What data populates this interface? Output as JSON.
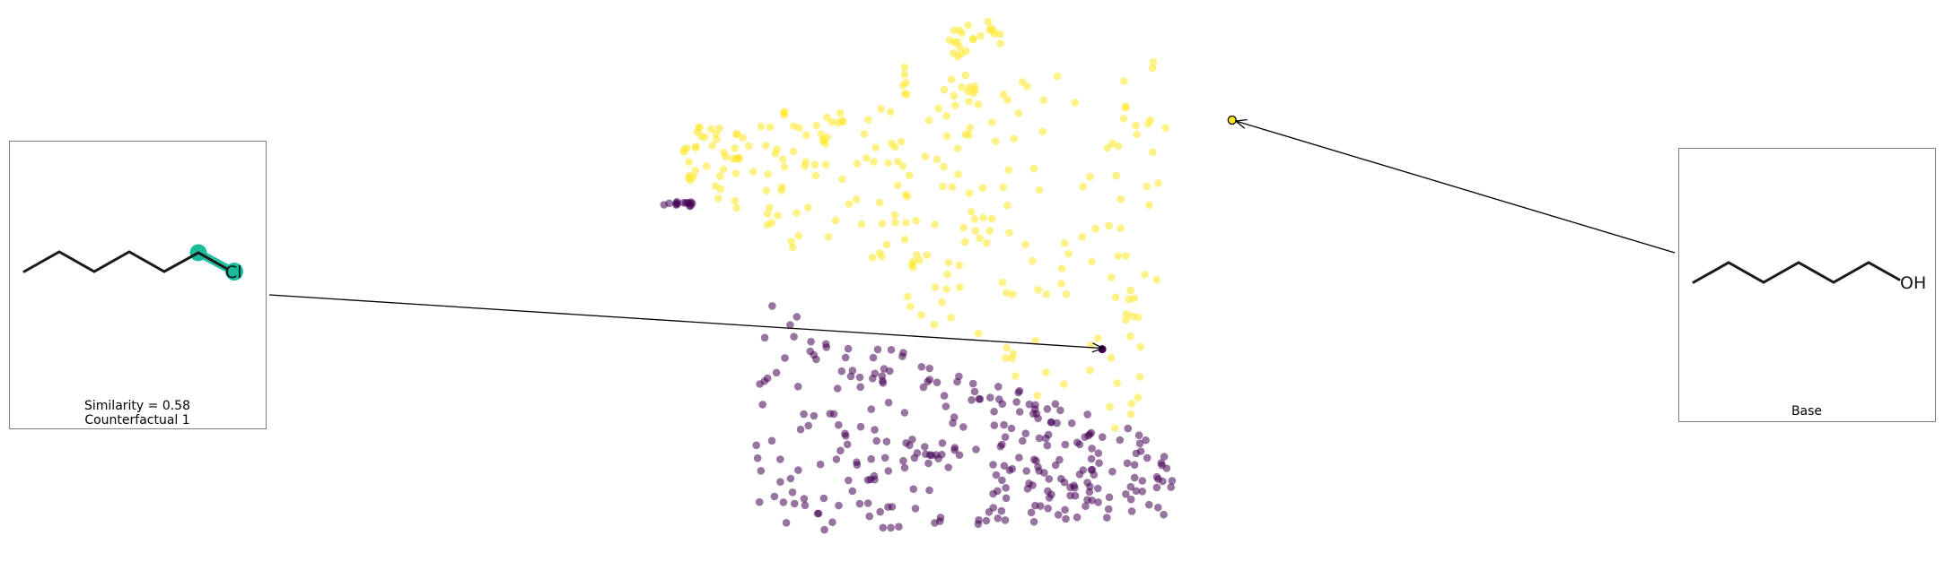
{
  "chart_data": {
    "type": "scatter",
    "title": "",
    "xlabel": "",
    "ylabel": "",
    "xlim": [
      0,
      100
    ],
    "ylim": [
      0,
      100
    ],
    "grid": false,
    "axes_visible": false,
    "colormap": "viridis",
    "colors": {
      "class_0": "#440154",
      "class_1": "#fde725",
      "highlight_bond": "#1abc9c"
    },
    "series": [
      {
        "class": 0,
        "count": 290
      },
      {
        "class": 1,
        "count": 260
      }
    ],
    "highlighted_points": [
      {
        "role": "counterfactual",
        "x": 78.9,
        "y": 38.4,
        "class": 0
      },
      {
        "role": "base",
        "x": 99.0,
        "y": 81.0,
        "class": 1
      }
    ],
    "annotations": [
      {
        "role": "counterfactual",
        "lines": [
          "Similarity = 0.58",
          "Counterfactual 1"
        ],
        "atom_label": "Cl"
      },
      {
        "role": "base",
        "lines": [
          "Base"
        ],
        "atom_label": "OH"
      }
    ]
  }
}
